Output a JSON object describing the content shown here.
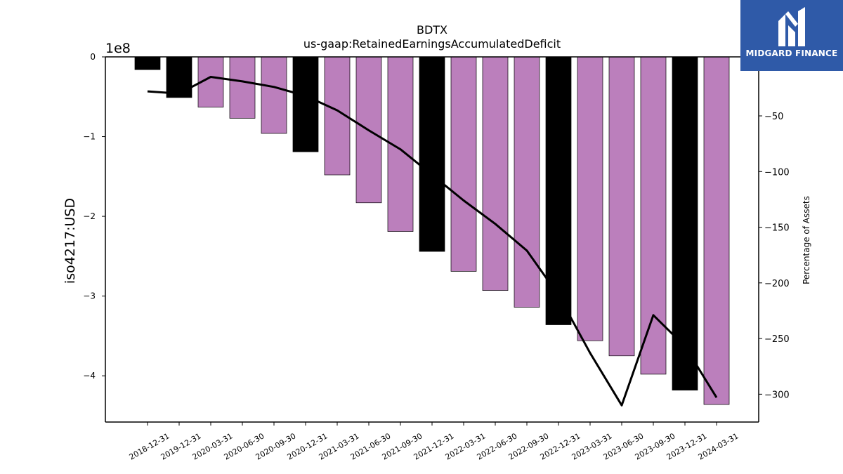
{
  "brand": {
    "name": "MIDGARD FINANCE",
    "color": "#2f5aa8"
  },
  "chart_data": {
    "type": "bar",
    "title": "BDTX",
    "subtitle": "us-gaap:RetainedEarningsAccumulatedDeficit",
    "ylabel": "iso4217:USD",
    "y2label": "Percentage of Assets",
    "y_scale_label": "1e8",
    "categories": [
      "2018-12-31",
      "2019-12-31",
      "2020-03-31",
      "2020-06-30",
      "2020-09-30",
      "2020-12-31",
      "2021-03-31",
      "2021-06-30",
      "2021-09-30",
      "2021-12-31",
      "2022-03-31",
      "2022-06-30",
      "2022-09-30",
      "2022-12-31",
      "2023-03-31",
      "2023-06-30",
      "2023-09-30",
      "2023-12-31",
      "2024-03-31"
    ],
    "values": [
      -16000000,
      -51000000,
      -63000000,
      -77000000,
      -96000000,
      -119000000,
      -148000000,
      -183000000,
      -219000000,
      -244000000,
      -269000000,
      -293000000,
      -314000000,
      -336000000,
      -356000000,
      -375000000,
      -398000000,
      -418000000,
      -436000000
    ],
    "annual_flags": [
      true,
      true,
      false,
      false,
      false,
      true,
      false,
      false,
      false,
      true,
      false,
      false,
      false,
      true,
      false,
      false,
      false,
      true,
      false
    ],
    "bar_colors": {
      "annual": "#000000",
      "quarterly": "#bb7fbc"
    },
    "ylim": [
      -458000000,
      0
    ],
    "yticks": [
      0,
      -100000000,
      -200000000,
      -300000000,
      -400000000
    ],
    "ytick_labels": [
      "0",
      "−1",
      "−2",
      "−3",
      "−4"
    ],
    "line": {
      "name": "Percentage of Assets",
      "color": "#000000",
      "values": [
        -28,
        -30,
        -15,
        -19,
        -24,
        -32,
        -45,
        -63,
        -80,
        -103,
        -126,
        -147,
        -171,
        -211,
        -263,
        -310,
        -229,
        -257,
        -303
      ]
    },
    "y2lim": [
      -325,
      3
    ],
    "y2ticks": [
      -50,
      -100,
      -150,
      -200,
      -250,
      -300
    ],
    "y2tick_labels": [
      "−50",
      "−100",
      "−150",
      "−200",
      "−250",
      "−300"
    ],
    "grid": false,
    "legend": "none"
  }
}
